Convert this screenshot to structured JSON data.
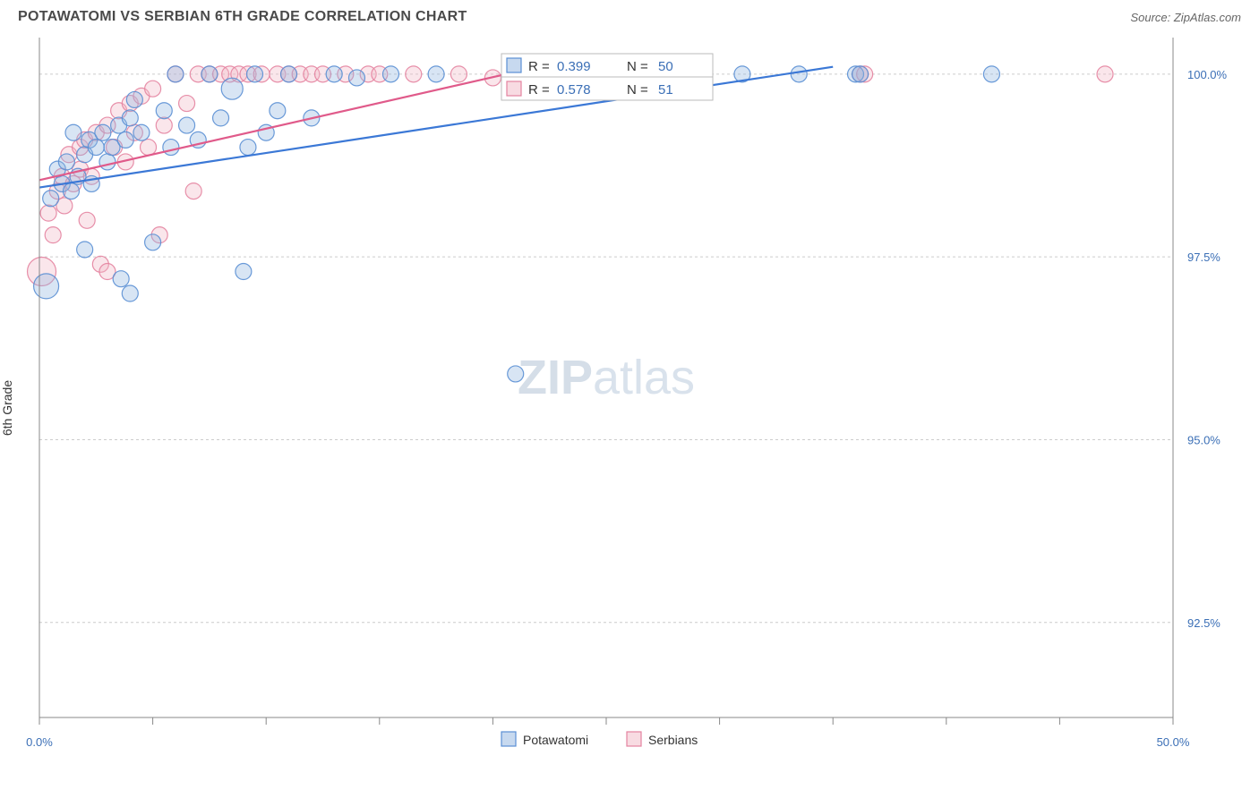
{
  "header": {
    "title": "POTAWATOMI VS SERBIAN 6TH GRADE CORRELATION CHART",
    "source": "Source: ZipAtlas.com"
  },
  "axes": {
    "ylabel": "6th Grade",
    "xlim": [
      0,
      50
    ],
    "ylim": [
      91.2,
      100.5
    ],
    "xticks": [
      0,
      5,
      10,
      15,
      20,
      25,
      30,
      35,
      40,
      45,
      50
    ],
    "xticks_labeled": {
      "0": "0.0%",
      "50": "50.0%"
    },
    "yticks": [
      92.5,
      95.0,
      97.5,
      100.0
    ],
    "ytick_labels": [
      "92.5%",
      "95.0%",
      "97.5%",
      "100.0%"
    ]
  },
  "colors": {
    "series_a_fill": "#8fb4e0",
    "series_a_stroke": "#5a8fd4",
    "series_b_fill": "#f2b8c6",
    "series_b_stroke": "#e483a0",
    "line_a": "#3b78d6",
    "line_b": "#e05a8a",
    "grid": "#cccccc",
    "axis": "#888888",
    "label_blue": "#3b6fb6",
    "background": "#ffffff",
    "text_dark": "#333333"
  },
  "marker": {
    "radius": 9,
    "fill_opacity": 0.35,
    "stroke_opacity": 0.9,
    "stroke_width": 1.2
  },
  "legend": {
    "series_a": "Potawatomi",
    "series_b": "Serbians"
  },
  "stats": {
    "row_a": {
      "R_label": "R =",
      "R": "0.399",
      "N_label": "N =",
      "N": "50"
    },
    "row_b": {
      "R_label": "R =",
      "R": "0.578",
      "N_label": "N =",
      "N": "51"
    }
  },
  "trend_lines": {
    "a": {
      "x1": 0,
      "y1": 98.45,
      "x2": 35,
      "y2": 100.1
    },
    "b": {
      "x1": 0,
      "y1": 98.55,
      "x2": 22,
      "y2": 100.1
    }
  },
  "watermark": {
    "zip": "ZIP",
    "atlas": "atlas"
  },
  "series_a_points": [
    {
      "x": 0.3,
      "y": 97.1,
      "r": 14
    },
    {
      "x": 0.5,
      "y": 98.3,
      "r": 9
    },
    {
      "x": 0.8,
      "y": 98.7,
      "r": 9
    },
    {
      "x": 1.0,
      "y": 98.5,
      "r": 9
    },
    {
      "x": 1.2,
      "y": 98.8,
      "r": 9
    },
    {
      "x": 1.4,
      "y": 98.4,
      "r": 9
    },
    {
      "x": 1.5,
      "y": 99.2,
      "r": 9
    },
    {
      "x": 1.7,
      "y": 98.6,
      "r": 9
    },
    {
      "x": 2.0,
      "y": 98.9,
      "r": 9
    },
    {
      "x": 2.0,
      "y": 97.6,
      "r": 9
    },
    {
      "x": 2.2,
      "y": 99.1,
      "r": 9
    },
    {
      "x": 2.3,
      "y": 98.5,
      "r": 9
    },
    {
      "x": 2.5,
      "y": 99.0,
      "r": 9
    },
    {
      "x": 2.8,
      "y": 99.2,
      "r": 9
    },
    {
      "x": 3.0,
      "y": 98.8,
      "r": 9
    },
    {
      "x": 3.2,
      "y": 99.0,
      "r": 9
    },
    {
      "x": 3.5,
      "y": 99.3,
      "r": 9
    },
    {
      "x": 3.6,
      "y": 97.2,
      "r": 9
    },
    {
      "x": 3.8,
      "y": 99.1,
      "r": 9
    },
    {
      "x": 4.0,
      "y": 99.4,
      "r": 9
    },
    {
      "x": 4.2,
      "y": 99.65,
      "r": 9
    },
    {
      "x": 4.0,
      "y": 97.0,
      "r": 9
    },
    {
      "x": 4.5,
      "y": 99.2,
      "r": 9
    },
    {
      "x": 5.0,
      "y": 97.7,
      "r": 9
    },
    {
      "x": 5.5,
      "y": 99.5,
      "r": 9
    },
    {
      "x": 5.8,
      "y": 99.0,
      "r": 9
    },
    {
      "x": 6.0,
      "y": 100.0,
      "r": 9
    },
    {
      "x": 6.5,
      "y": 99.3,
      "r": 9
    },
    {
      "x": 7.0,
      "y": 99.1,
      "r": 9
    },
    {
      "x": 7.5,
      "y": 100.0,
      "r": 9
    },
    {
      "x": 8.0,
      "y": 99.4,
      "r": 9
    },
    {
      "x": 8.5,
      "y": 99.8,
      "r": 12
    },
    {
      "x": 9.0,
      "y": 97.3,
      "r": 9
    },
    {
      "x": 9.2,
      "y": 99.0,
      "r": 9
    },
    {
      "x": 9.5,
      "y": 100.0,
      "r": 9
    },
    {
      "x": 10.0,
      "y": 99.2,
      "r": 9
    },
    {
      "x": 10.5,
      "y": 99.5,
      "r": 9
    },
    {
      "x": 11.0,
      "y": 100.0,
      "r": 9
    },
    {
      "x": 12.0,
      "y": 99.4,
      "r": 9
    },
    {
      "x": 13.0,
      "y": 100.0,
      "r": 9
    },
    {
      "x": 14.0,
      "y": 99.95,
      "r": 9
    },
    {
      "x": 15.5,
      "y": 100.0,
      "r": 9
    },
    {
      "x": 17.5,
      "y": 100.0,
      "r": 9
    },
    {
      "x": 21.0,
      "y": 95.9,
      "r": 9
    },
    {
      "x": 25.0,
      "y": 99.95,
      "r": 9
    },
    {
      "x": 31.0,
      "y": 100.0,
      "r": 9
    },
    {
      "x": 33.5,
      "y": 100.0,
      "r": 9
    },
    {
      "x": 36.0,
      "y": 100.0,
      "r": 9
    },
    {
      "x": 42.0,
      "y": 100.0,
      "r": 9
    },
    {
      "x": 36.2,
      "y": 100.0,
      "r": 9
    }
  ],
  "series_b_points": [
    {
      "x": 0.1,
      "y": 97.3,
      "r": 16
    },
    {
      "x": 0.4,
      "y": 98.1,
      "r": 9
    },
    {
      "x": 0.6,
      "y": 97.8,
      "r": 9
    },
    {
      "x": 0.8,
      "y": 98.4,
      "r": 9
    },
    {
      "x": 1.0,
      "y": 98.6,
      "r": 9
    },
    {
      "x": 1.1,
      "y": 98.2,
      "r": 9
    },
    {
      "x": 1.3,
      "y": 98.9,
      "r": 9
    },
    {
      "x": 1.5,
      "y": 98.5,
      "r": 9
    },
    {
      "x": 1.8,
      "y": 99.0,
      "r": 9
    },
    {
      "x": 1.8,
      "y": 98.7,
      "r": 9
    },
    {
      "x": 2.0,
      "y": 99.1,
      "r": 9
    },
    {
      "x": 2.1,
      "y": 98.0,
      "r": 9
    },
    {
      "x": 2.3,
      "y": 98.6,
      "r": 9
    },
    {
      "x": 2.5,
      "y": 99.2,
      "r": 9
    },
    {
      "x": 2.7,
      "y": 97.4,
      "r": 9
    },
    {
      "x": 3.0,
      "y": 99.3,
      "r": 9
    },
    {
      "x": 3.0,
      "y": 97.3,
      "r": 9
    },
    {
      "x": 3.3,
      "y": 99.0,
      "r": 9
    },
    {
      "x": 3.5,
      "y": 99.5,
      "r": 9
    },
    {
      "x": 3.8,
      "y": 98.8,
      "r": 9
    },
    {
      "x": 4.0,
      "y": 99.6,
      "r": 9
    },
    {
      "x": 4.2,
      "y": 99.2,
      "r": 9
    },
    {
      "x": 4.5,
      "y": 99.7,
      "r": 9
    },
    {
      "x": 4.8,
      "y": 99.0,
      "r": 9
    },
    {
      "x": 5.0,
      "y": 99.8,
      "r": 9
    },
    {
      "x": 5.3,
      "y": 97.8,
      "r": 9
    },
    {
      "x": 5.5,
      "y": 99.3,
      "r": 9
    },
    {
      "x": 6.0,
      "y": 100.0,
      "r": 9
    },
    {
      "x": 6.5,
      "y": 99.6,
      "r": 9
    },
    {
      "x": 6.8,
      "y": 98.4,
      "r": 9
    },
    {
      "x": 7.0,
      "y": 100.0,
      "r": 9
    },
    {
      "x": 7.5,
      "y": 100.0,
      "r": 9
    },
    {
      "x": 8.0,
      "y": 100.0,
      "r": 9
    },
    {
      "x": 8.4,
      "y": 100.0,
      "r": 9
    },
    {
      "x": 8.8,
      "y": 100.0,
      "r": 9
    },
    {
      "x": 9.2,
      "y": 100.0,
      "r": 9
    },
    {
      "x": 9.8,
      "y": 100.0,
      "r": 9
    },
    {
      "x": 10.5,
      "y": 100.0,
      "r": 9
    },
    {
      "x": 11.0,
      "y": 100.0,
      "r": 9
    },
    {
      "x": 11.5,
      "y": 100.0,
      "r": 9
    },
    {
      "x": 12.0,
      "y": 100.0,
      "r": 9
    },
    {
      "x": 12.5,
      "y": 100.0,
      "r": 9
    },
    {
      "x": 13.5,
      "y": 100.0,
      "r": 9
    },
    {
      "x": 14.5,
      "y": 100.0,
      "r": 9
    },
    {
      "x": 15.0,
      "y": 100.0,
      "r": 9
    },
    {
      "x": 16.5,
      "y": 100.0,
      "r": 9
    },
    {
      "x": 18.5,
      "y": 100.0,
      "r": 9
    },
    {
      "x": 20.0,
      "y": 99.95,
      "r": 9
    },
    {
      "x": 36.2,
      "y": 100.0,
      "r": 9
    },
    {
      "x": 36.4,
      "y": 100.0,
      "r": 9
    },
    {
      "x": 47.0,
      "y": 100.0,
      "r": 9
    }
  ]
}
